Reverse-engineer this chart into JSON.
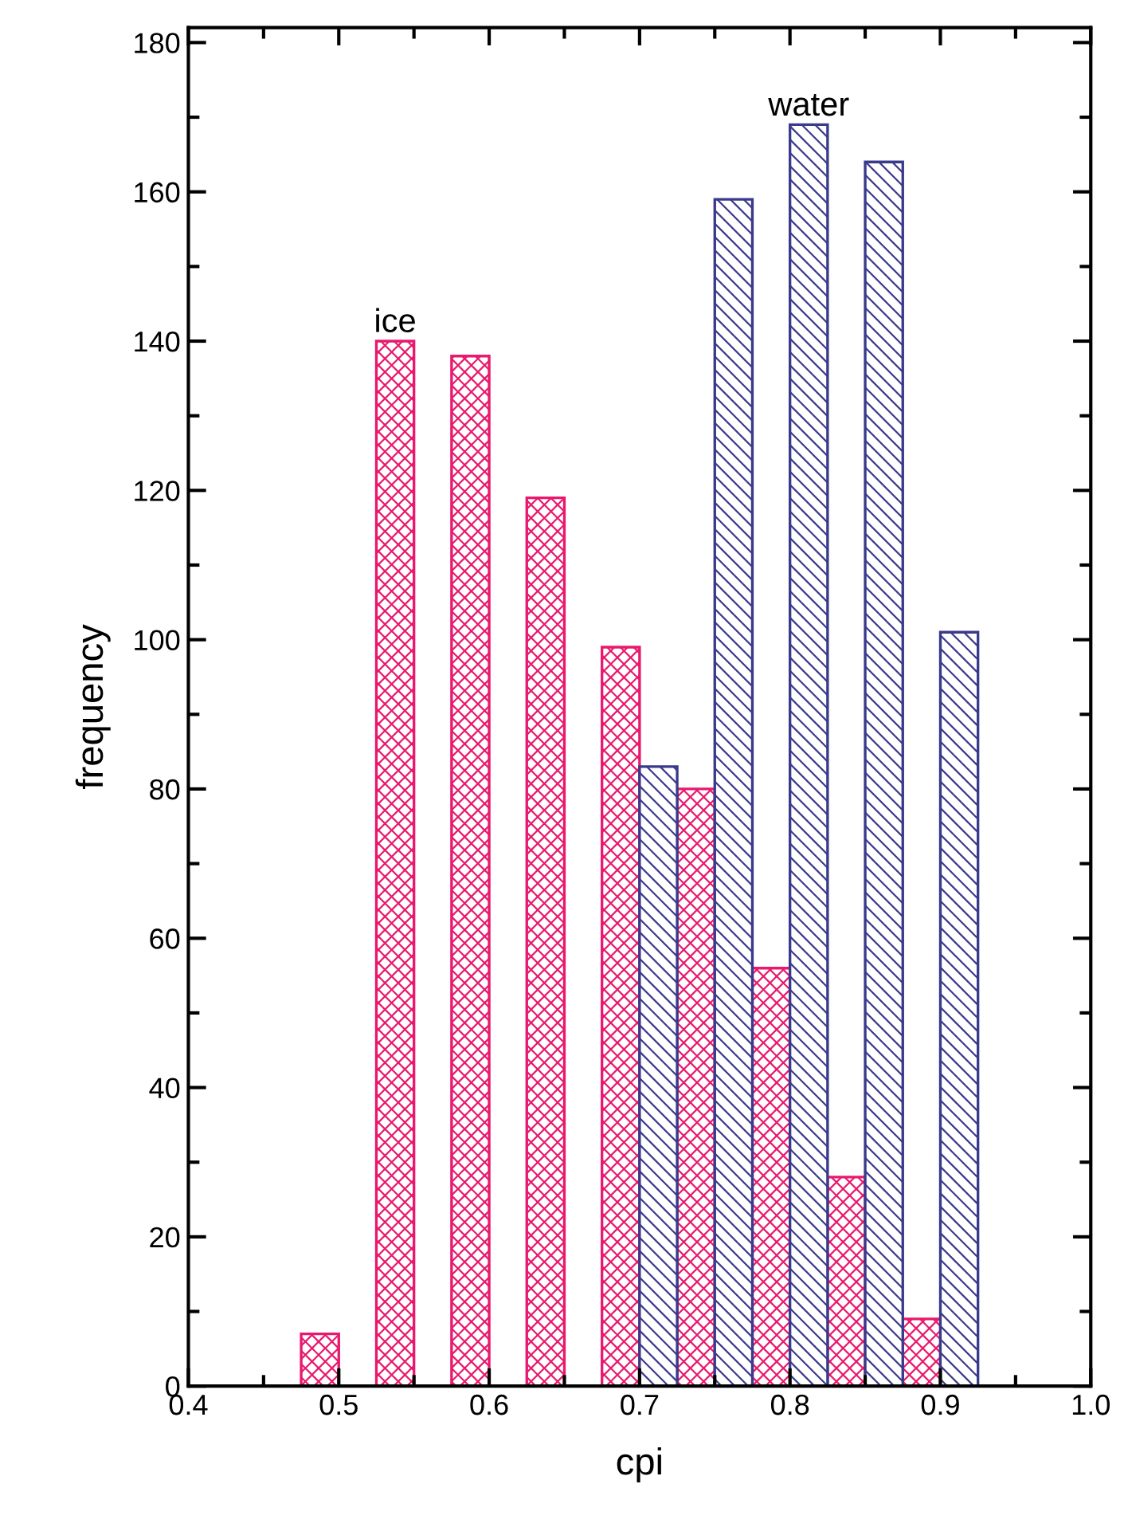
{
  "chart_data": {
    "type": "bar",
    "xlabel": "cpi",
    "ylabel": "frequency",
    "series": [
      {
        "color": "#e8196e",
        "x": [
          0.4875,
          0.5375,
          0.5875,
          0.6375,
          0.6875,
          0.7375,
          0.7875,
          0.8375,
          0.8875
        ],
        "values": [
          7,
          140,
          138,
          119,
          99,
          80,
          56,
          28,
          9
        ]
      },
      {
        "color": "#3a3a8c",
        "x": [
          0.7125,
          0.7625,
          0.8125,
          0.8625,
          0.9125
        ],
        "values": [
          83,
          159,
          169,
          164,
          101
        ]
      }
    ],
    "annotations": [
      {
        "text": "ice",
        "x": 0.5375,
        "y": 140
      },
      {
        "text": "water",
        "x": 0.8125,
        "y": 169
      }
    ],
    "xlim": [
      0.4,
      1.0
    ],
    "xticks": [
      {
        "value": 0.4,
        "label": "0.4"
      },
      0.5,
      0.6,
      0.7,
      0.8,
      0.9,
      {
        "value": 1.0,
        "label": "1.0"
      }
    ],
    "ylim": [
      0,
      182
    ],
    "yticks": [
      0,
      20,
      40,
      60,
      80,
      100,
      120,
      140,
      160,
      180
    ],
    "grid": false,
    "legend": false
  }
}
